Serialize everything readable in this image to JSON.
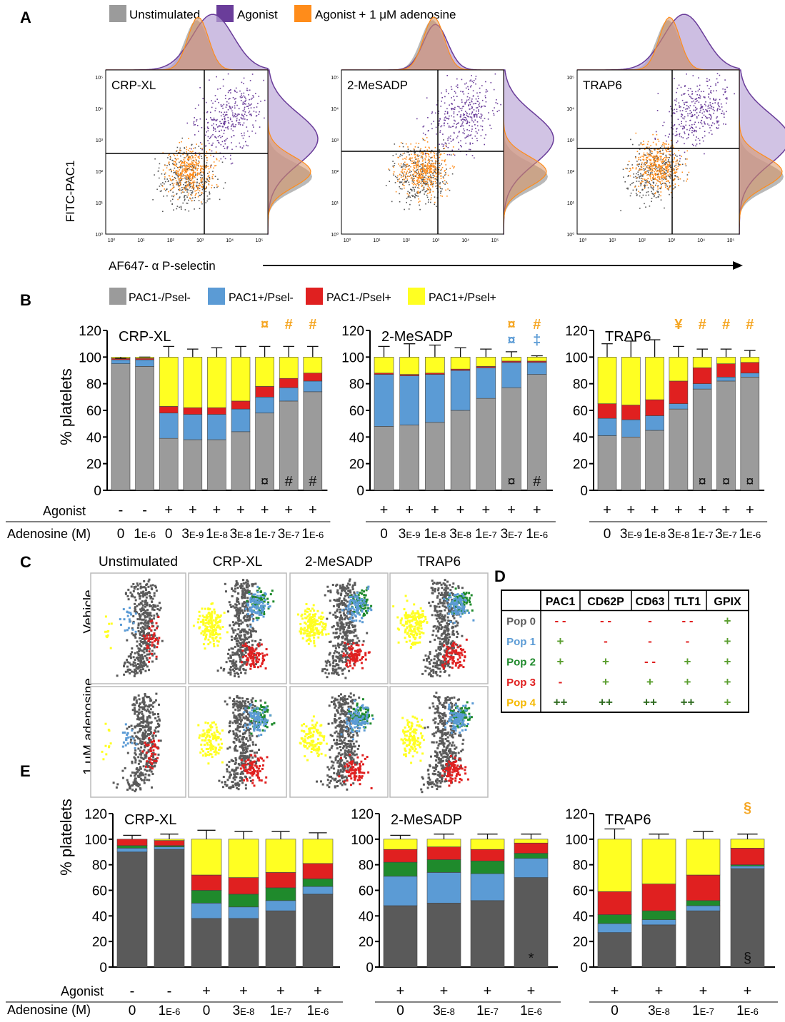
{
  "panels": {
    "A": "A",
    "B": "B",
    "C": "C",
    "D": "D",
    "E": "E"
  },
  "colors": {
    "gray": "#9b9b9b",
    "dark": "#5a5a5a",
    "blue": "#5b9bd5",
    "red": "#e02020",
    "yellow": "#ffff22",
    "green": "#1f8a2c",
    "purple": "#6a3d9a",
    "orange": "#ff8c1a",
    "sym_orange": "#f5a623",
    "sym_blue": "#5b9bd5",
    "plus_green": "#5a9e2f",
    "minus_red": "#e02020"
  },
  "panelA": {
    "legend": [
      "Unstimulated",
      "Agonist",
      "Agonist + 1 μM adenosine"
    ],
    "ylabel": "FITC-PAC1",
    "xlabel": "AF647- α P-selectin",
    "plots": [
      {
        "label": "CRP-XL"
      },
      {
        "label": "2-MeSADP"
      },
      {
        "label": "TRAP6"
      }
    ],
    "ticks": [
      "10⁰",
      "10¹",
      "10²",
      "10³",
      "10⁴",
      "10⁵"
    ]
  },
  "chart_data": [
    {
      "type": "bar",
      "stacked": true,
      "panel": "B",
      "title": "CRP-XL",
      "ylabel": "% platelets",
      "ylim": [
        0,
        120
      ],
      "yticks": [
        0,
        20,
        40,
        60,
        80,
        100,
        120
      ],
      "legend": [
        "PAC1-/Psel-",
        "PAC1+/Psel-",
        "PAC1-/Psel+",
        "PAC1+/Psel+"
      ],
      "agonist": [
        "-",
        "-",
        "+",
        "+",
        "+",
        "+",
        "+",
        "+",
        "+"
      ],
      "adenosine": [
        "0",
        "1E-6",
        "0",
        "3E-9",
        "1E-8",
        "3E-8",
        "1E-7",
        "3E-7",
        "1E-6"
      ],
      "series": [
        {
          "name": "PAC1-/Psel-",
          "values": [
            95,
            93,
            39,
            38,
            38,
            44,
            58,
            67,
            74
          ]
        },
        {
          "name": "PAC1+/Psel-",
          "values": [
            3,
            5,
            19,
            19,
            19,
            17,
            12,
            10,
            8
          ]
        },
        {
          "name": "PAC1-/Psel+",
          "values": [
            1,
            1,
            5,
            5,
            5,
            6,
            8,
            7,
            6
          ]
        },
        {
          "name": "PAC1+/Psel+",
          "values": [
            1,
            1,
            37,
            38,
            38,
            33,
            22,
            16,
            12
          ]
        }
      ],
      "error_top": [
        99,
        100,
        108,
        106,
        107,
        108,
        108,
        108,
        108
      ],
      "top_symbols": [
        "",
        "",
        "",
        "",
        "",
        "",
        "¤",
        "#",
        "#"
      ],
      "bottom_symbols": [
        "",
        "",
        "",
        "",
        "",
        "",
        "¤",
        "#",
        "#"
      ]
    },
    {
      "type": "bar",
      "stacked": true,
      "panel": "B",
      "title": "2-MeSADP",
      "ylim": [
        0,
        120
      ],
      "yticks": [
        0,
        20,
        40,
        60,
        80,
        100,
        120
      ],
      "agonist": [
        "+",
        "+",
        "+",
        "+",
        "+",
        "+",
        "+"
      ],
      "adenosine": [
        "0",
        "3E-9",
        "1E-8",
        "3E-8",
        "1E-7",
        "3E-7",
        "1E-6"
      ],
      "series": [
        {
          "name": "PAC1-/Psel-",
          "values": [
            48,
            49,
            51,
            60,
            69,
            77,
            87
          ]
        },
        {
          "name": "PAC1+/Psel-",
          "values": [
            39,
            37,
            36,
            30,
            23,
            19,
            9
          ]
        },
        {
          "name": "PAC1-/Psel+",
          "values": [
            1,
            1,
            1,
            1,
            1,
            1,
            1
          ]
        },
        {
          "name": "PAC1+/Psel+",
          "values": [
            12,
            13,
            12,
            9,
            7,
            3,
            3
          ]
        }
      ],
      "error_top": [
        108,
        110,
        109,
        107,
        106,
        104,
        101
      ],
      "top_symbols": [
        "",
        "",
        "",
        "",
        "",
        "¤ ¤",
        "# ‡"
      ],
      "bottom_symbols": [
        "",
        "",
        "",
        "",
        "",
        "¤",
        "#"
      ]
    },
    {
      "type": "bar",
      "stacked": true,
      "panel": "B",
      "title": "TRAP6",
      "ylim": [
        0,
        120
      ],
      "yticks": [
        0,
        20,
        40,
        60,
        80,
        100,
        120
      ],
      "agonist": [
        "+",
        "+",
        "+",
        "+",
        "+",
        "+",
        "+"
      ],
      "adenosine": [
        "0",
        "3E-9",
        "1E-8",
        "3E-8",
        "1E-7",
        "3E-7",
        "1E-6"
      ],
      "series": [
        {
          "name": "PAC1-/Psel-",
          "values": [
            41,
            40,
            45,
            61,
            76,
            82,
            85
          ]
        },
        {
          "name": "PAC1+/Psel-",
          "values": [
            13,
            13,
            11,
            4,
            4,
            3,
            3
          ]
        },
        {
          "name": "PAC1-/Psel+",
          "values": [
            11,
            11,
            12,
            17,
            12,
            10,
            8
          ]
        },
        {
          "name": "PAC1+/Psel+",
          "values": [
            35,
            36,
            32,
            18,
            8,
            5,
            4
          ]
        }
      ],
      "error_top": [
        110,
        112,
        113,
        108,
        106,
        106,
        105
      ],
      "top_symbols": [
        "",
        "",
        "",
        "¥",
        "#",
        "#",
        "#"
      ],
      "bottom_symbols": [
        "",
        "",
        "",
        "",
        "¤",
        "¤",
        "¤"
      ]
    },
    {
      "type": "bar",
      "stacked": true,
      "panel": "E",
      "title": "CRP-XL",
      "ylabel": "% platelets",
      "ylim": [
        0,
        120
      ],
      "yticks": [
        0,
        20,
        40,
        60,
        80,
        100,
        120
      ],
      "agonist": [
        "-",
        "-",
        "+",
        "+",
        "+",
        "+"
      ],
      "adenosine": [
        "0",
        "1E-6",
        "0",
        "3E-8",
        "1E-7",
        "1E-6"
      ],
      "series": [
        {
          "name": "Pop 0",
          "values": [
            90,
            92,
            38,
            38,
            44,
            57
          ]
        },
        {
          "name": "Pop 1",
          "values": [
            3,
            2,
            12,
            9,
            8,
            6
          ]
        },
        {
          "name": "Pop 2",
          "values": [
            2,
            1,
            10,
            10,
            10,
            6
          ]
        },
        {
          "name": "Pop 3",
          "values": [
            5,
            4,
            12,
            13,
            12,
            12
          ]
        },
        {
          "name": "Pop 4",
          "values": [
            0,
            1,
            28,
            30,
            26,
            19
          ]
        }
      ],
      "error_top": [
        103,
        104,
        107,
        106,
        106,
        105
      ],
      "top_symbols": [
        "",
        "",
        "",
        "",
        "",
        ""
      ],
      "bottom_symbols": [
        "",
        "",
        "",
        "",
        "",
        ""
      ]
    },
    {
      "type": "bar",
      "stacked": true,
      "panel": "E",
      "title": "2-MeSADP",
      "ylim": [
        0,
        120
      ],
      "yticks": [
        0,
        20,
        40,
        60,
        80,
        100,
        120
      ],
      "agonist": [
        "+",
        "+",
        "+",
        "+"
      ],
      "adenosine": [
        "0",
        "3E-8",
        "1E-7",
        "1E-6"
      ],
      "series": [
        {
          "name": "Pop 0",
          "values": [
            48,
            50,
            52,
            70
          ]
        },
        {
          "name": "Pop 1",
          "values": [
            23,
            24,
            21,
            15
          ]
        },
        {
          "name": "Pop 2",
          "values": [
            11,
            10,
            10,
            4
          ]
        },
        {
          "name": "Pop 3",
          "values": [
            10,
            10,
            9,
            8
          ]
        },
        {
          "name": "Pop 4",
          "values": [
            8,
            6,
            8,
            3
          ]
        }
      ],
      "error_top": [
        103,
        104,
        104,
        104
      ],
      "top_symbols": [
        "",
        "",
        "",
        ""
      ],
      "bottom_symbols": [
        "",
        "",
        "",
        "*"
      ]
    },
    {
      "type": "bar",
      "stacked": true,
      "panel": "E",
      "title": "TRAP6",
      "ylim": [
        0,
        120
      ],
      "yticks": [
        0,
        20,
        40,
        60,
        80,
        100,
        120
      ],
      "agonist": [
        "+",
        "+",
        "+",
        "+"
      ],
      "adenosine": [
        "0",
        "3E-8",
        "1E-7",
        "1E-6"
      ],
      "series": [
        {
          "name": "Pop 0",
          "values": [
            27,
            33,
            44,
            77
          ]
        },
        {
          "name": "Pop 1",
          "values": [
            7,
            4,
            4,
            2
          ]
        },
        {
          "name": "Pop 2",
          "values": [
            7,
            7,
            4,
            1
          ]
        },
        {
          "name": "Pop 3",
          "values": [
            18,
            21,
            20,
            13
          ]
        },
        {
          "name": "Pop 4",
          "values": [
            41,
            35,
            28,
            7
          ]
        }
      ],
      "error_top": [
        108,
        104,
        106,
        104
      ],
      "top_symbols": [
        "",
        "",
        "",
        "§"
      ],
      "bottom_symbols": [
        "",
        "",
        "",
        "§"
      ]
    }
  ],
  "panelB": {
    "legend": [
      "PAC1-/Psel-",
      "PAC1+/Psel-",
      "PAC1-/Psel+",
      "PAC1+/Psel+"
    ],
    "row_agonist": "Agonist",
    "row_adenosine": "Adenosine (M)"
  },
  "panelC": {
    "columns": [
      "Unstimulated",
      "CRP-XL",
      "2-MeSADP",
      "TRAP6"
    ],
    "rows": [
      "Vehicle",
      "1 μM adenosine"
    ]
  },
  "panelD": {
    "headers": [
      "",
      "PAC1",
      "CD62P",
      "CD63",
      "TLT1",
      "GPIX"
    ],
    "rows": [
      {
        "label": "Pop 0",
        "cells": [
          "- -",
          "- -",
          "-",
          "- -",
          "+"
        ]
      },
      {
        "label": "Pop 1",
        "cells": [
          "+",
          "-",
          "-",
          "-",
          "+"
        ]
      },
      {
        "label": "Pop 2",
        "cells": [
          "+",
          "+",
          "- -",
          "+",
          "+"
        ]
      },
      {
        "label": "Pop 3",
        "cells": [
          "-",
          "+",
          "+",
          "+",
          "+"
        ]
      },
      {
        "label": "Pop 4",
        "cells": [
          "++",
          "++",
          "++",
          "++",
          "+"
        ]
      }
    ]
  },
  "panelE": {
    "row_agonist": "Agonist",
    "row_adenosine": "Adenosine (M)"
  }
}
